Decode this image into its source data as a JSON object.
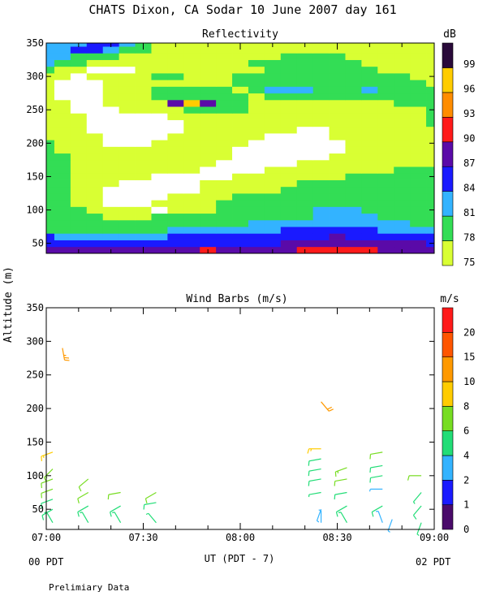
{
  "figure": {
    "title": "CHATS Dixon, CA  Sodar  10 June 2007  day 161",
    "y_axis_label": "Altitude (m)",
    "x_axis_label": "UT  (PDT - 7)",
    "left_local_time": "00 PDT",
    "right_local_time": "02 PDT",
    "footer_note": "Prelimiary Data"
  },
  "chart_data": [
    {
      "type": "heatmap",
      "title": "Reflectivity",
      "colorbar_unit": "dB",
      "colorbar_levels": [
        75,
        78,
        81,
        84,
        87,
        90,
        93,
        96,
        99
      ],
      "colorbar_colors": [
        "#d9ff33",
        "#33dd55",
        "#33b3ff",
        "#1a1aff",
        "#5a0aa8",
        "#ff1a1a",
        "#ff8c00",
        "#ffcc00",
        "#2a0a3a"
      ],
      "x_ticks": [
        "07:00",
        "07:30",
        "08:00",
        "08:30",
        "09:00"
      ],
      "xlim": [
        "07:00",
        "09:00"
      ],
      "y_ticks": [
        50,
        100,
        150,
        200,
        250,
        300,
        350
      ],
      "ylim": [
        35,
        350
      ],
      "x_times": [
        "07:00",
        "07:05",
        "07:10",
        "07:15",
        "07:20",
        "07:25",
        "07:30",
        "07:35",
        "07:40",
        "07:45",
        "07:50",
        "07:55",
        "08:00",
        "08:05",
        "08:10",
        "08:15",
        "08:20",
        "08:25",
        "08:30",
        "08:35",
        "08:40",
        "08:45",
        "08:50",
        "08:55",
        "09:00"
      ],
      "y_heights": [
        40,
        50,
        60,
        70,
        80,
        90,
        100,
        110,
        120,
        130,
        140,
        150,
        160,
        170,
        180,
        190,
        200,
        210,
        220,
        230,
        240,
        250,
        260,
        270,
        280,
        290,
        300,
        310,
        320,
        330,
        340,
        350
      ],
      "z_dB": [
        [
          87,
          88,
          88,
          88,
          88,
          87,
          87,
          88,
          88,
          89,
          90,
          89,
          88,
          88,
          89,
          89,
          90,
          91,
          91,
          90,
          90,
          89,
          88,
          88,
          87
        ],
        [
          86,
          86,
          86,
          85,
          85,
          85,
          86,
          86,
          86,
          86,
          86,
          86,
          86,
          86,
          86,
          87,
          87,
          88,
          88,
          88,
          88,
          88,
          87,
          87,
          86
        ],
        [
          84,
          83,
          83,
          83,
          83,
          83,
          83,
          83,
          84,
          84,
          84,
          84,
          85,
          85,
          85,
          86,
          86,
          86,
          87,
          86,
          86,
          85,
          85,
          84,
          84
        ],
        [
          80,
          80,
          80,
          80,
          80,
          80,
          80,
          80,
          81,
          81,
          81,
          82,
          82,
          83,
          83,
          84,
          84,
          84,
          85,
          84,
          84,
          83,
          82,
          82,
          81
        ],
        [
          79,
          79,
          79,
          78,
          78,
          78,
          78,
          79,
          79,
          79,
          79,
          80,
          80,
          81,
          81,
          82,
          82,
          82,
          83,
          82,
          82,
          81,
          81,
          80,
          80
        ],
        [
          79,
          79,
          78,
          78,
          77,
          77,
          77,
          78,
          78,
          78,
          78,
          78,
          78,
          79,
          79,
          80,
          80,
          81,
          82,
          81,
          81,
          80,
          80,
          80,
          79
        ],
        [
          79,
          78,
          78,
          77,
          76,
          75,
          75,
          74,
          75,
          75,
          77,
          78,
          78,
          79,
          80,
          80,
          80,
          81,
          81,
          81,
          80,
          80,
          79,
          79,
          79
        ],
        [
          78,
          78,
          77,
          75,
          74,
          73,
          74,
          75,
          75,
          76,
          77,
          78,
          78,
          78,
          79,
          79,
          79,
          80,
          80,
          80,
          80,
          79,
          79,
          79,
          79
        ],
        [
          79,
          78,
          77,
          75,
          74,
          74,
          74,
          74,
          75,
          75,
          76,
          77,
          78,
          78,
          78,
          78,
          79,
          79,
          80,
          80,
          79,
          79,
          79,
          79,
          79
        ],
        [
          78,
          78,
          77,
          76,
          74,
          73,
          73,
          73,
          74,
          74,
          75,
          76,
          77,
          77,
          77,
          78,
          78,
          78,
          79,
          79,
          79,
          79,
          79,
          78,
          78
        ],
        [
          79,
          78,
          77,
          76,
          75,
          74,
          74,
          74,
          74,
          74,
          75,
          75,
          76,
          76,
          77,
          77,
          78,
          78,
          78,
          78,
          78,
          78,
          78,
          78,
          78
        ],
        [
          78,
          78,
          77,
          76,
          75,
          75,
          75,
          74,
          74,
          74,
          74,
          74,
          75,
          75,
          76,
          76,
          77,
          77,
          77,
          78,
          78,
          78,
          78,
          78,
          78
        ],
        [
          79,
          78,
          77,
          76,
          75,
          75,
          75,
          75,
          75,
          75,
          74,
          74,
          74,
          74,
          75,
          75,
          76,
          76,
          76,
          77,
          77,
          77,
          78,
          78,
          78
        ],
        [
          78,
          78,
          77,
          76,
          75,
          75,
          76,
          76,
          76,
          75,
          75,
          74,
          74,
          74,
          74,
          74,
          75,
          75,
          75,
          76,
          76,
          77,
          77,
          77,
          77
        ],
        [
          79,
          78,
          77,
          75,
          75,
          76,
          76,
          76,
          76,
          75,
          75,
          75,
          74,
          74,
          74,
          74,
          74,
          74,
          75,
          75,
          76,
          76,
          77,
          77,
          77
        ],
        [
          78,
          77,
          77,
          75,
          75,
          75,
          76,
          76,
          76,
          75,
          75,
          75,
          74,
          74,
          74,
          74,
          74,
          74,
          74,
          75,
          75,
          76,
          77,
          77,
          77
        ],
        [
          78,
          77,
          76,
          75,
          74,
          74,
          74,
          75,
          75,
          76,
          75,
          75,
          75,
          74,
          74,
          74,
          74,
          74,
          74,
          75,
          75,
          76,
          76,
          77,
          77
        ],
        [
          77,
          77,
          76,
          75,
          74,
          74,
          74,
          74,
          75,
          75,
          75,
          75,
          75,
          75,
          74,
          74,
          74,
          74,
          75,
          75,
          75,
          76,
          77,
          77,
          77
        ],
        [
          77,
          76,
          75,
          74,
          74,
          74,
          74,
          74,
          74,
          75,
          75,
          75,
          75,
          75,
          75,
          75,
          74,
          74,
          75,
          75,
          76,
          76,
          76,
          77,
          77
        ],
        [
          77,
          76,
          75,
          74,
          73,
          73,
          74,
          74,
          74,
          75,
          75,
          76,
          76,
          76,
          76,
          75,
          75,
          75,
          75,
          75,
          76,
          76,
          76,
          77,
          78
        ],
        [
          76,
          76,
          75,
          74,
          73,
          74,
          74,
          74,
          75,
          76,
          76,
          77,
          77,
          77,
          76,
          76,
          75,
          75,
          75,
          76,
          76,
          76,
          77,
          77,
          78
        ],
        [
          76,
          75,
          74,
          73,
          74,
          75,
          76,
          76,
          77,
          79,
          78,
          78,
          78,
          77,
          77,
          77,
          76,
          76,
          76,
          76,
          77,
          77,
          77,
          77,
          78
        ],
        [
          76,
          75,
          74,
          74,
          75,
          76,
          77,
          77,
          88,
          97,
          88,
          79,
          78,
          77,
          77,
          77,
          76,
          76,
          77,
          77,
          77,
          77,
          78,
          78,
          78
        ],
        [
          75,
          74,
          74,
          74,
          75,
          76,
          77,
          78,
          79,
          80,
          79,
          78,
          78,
          77,
          78,
          79,
          79,
          79,
          78,
          79,
          80,
          79,
          78,
          78,
          78
        ],
        [
          75,
          74,
          74,
          74,
          75,
          76,
          77,
          78,
          78,
          78,
          78,
          78,
          77,
          79,
          81,
          83,
          82,
          80,
          79,
          80,
          82,
          80,
          79,
          78,
          78
        ],
        [
          75,
          74,
          74,
          74,
          75,
          76,
          77,
          77,
          77,
          77,
          77,
          77,
          78,
          79,
          80,
          80,
          80,
          79,
          78,
          78,
          79,
          79,
          78,
          78,
          77
        ],
        [
          77,
          75,
          74,
          75,
          75,
          76,
          77,
          78,
          78,
          77,
          77,
          77,
          78,
          78,
          78,
          78,
          79,
          79,
          78,
          78,
          78,
          78,
          78,
          77,
          77
        ],
        [
          80,
          77,
          75,
          74,
          74,
          74,
          75,
          76,
          77,
          77,
          77,
          77,
          77,
          77,
          78,
          78,
          78,
          79,
          79,
          78,
          78,
          77,
          77,
          77,
          77
        ],
        [
          83,
          80,
          78,
          76,
          75,
          75,
          76,
          76,
          77,
          77,
          77,
          77,
          77,
          78,
          78,
          78,
          79,
          79,
          79,
          78,
          77,
          77,
          77,
          77,
          77
        ],
        [
          82,
          81,
          80,
          79,
          78,
          77,
          77,
          77,
          77,
          77,
          77,
          77,
          77,
          77,
          77,
          78,
          78,
          78,
          78,
          77,
          77,
          77,
          77,
          77,
          77
        ],
        [
          82,
          82,
          84,
          85,
          83,
          80,
          78,
          77,
          77,
          77,
          77,
          77,
          77,
          77,
          77,
          77,
          77,
          77,
          77,
          77,
          77,
          77,
          77,
          77,
          77
        ],
        [
          82,
          82,
          83,
          85,
          84,
          81,
          78,
          77,
          77,
          77,
          77,
          77,
          77,
          77,
          77,
          77,
          77,
          77,
          77,
          77,
          77,
          77,
          77,
          77,
          77
        ]
      ]
    },
    {
      "type": "scatter",
      "title": "Wind Barbs (m/s)",
      "colorbar_unit": "m/s",
      "colorbar_labels": [
        0,
        1,
        2,
        4,
        6,
        8,
        10,
        15,
        20
      ],
      "colorbar_colors": [
        "#4a0a6a",
        "#1a1aff",
        "#33b3ff",
        "#22dd77",
        "#77dd22",
        "#ffcc00",
        "#ff9900",
        "#ff5500",
        "#ff1a1a"
      ],
      "x_ticks": [
        "07:00",
        "07:30",
        "08:00",
        "08:30",
        "09:00"
      ],
      "xlim": [
        "07:00",
        "09:00"
      ],
      "y_ticks": [
        50,
        100,
        150,
        200,
        250,
        300,
        350
      ],
      "ylim": [
        20,
        350
      ],
      "barbs": [
        {
          "t": "07:02",
          "h": 30,
          "speed": 4,
          "dir": 330
        },
        {
          "t": "07:02",
          "h": 50,
          "speed": 5,
          "dir": 240
        },
        {
          "t": "07:02",
          "h": 65,
          "speed": 5,
          "dir": 250
        },
        {
          "t": "07:02",
          "h": 80,
          "speed": 6,
          "dir": 250
        },
        {
          "t": "07:02",
          "h": 95,
          "speed": 6,
          "dir": 250
        },
        {
          "t": "07:02",
          "h": 110,
          "speed": 7,
          "dir": 225
        },
        {
          "t": "07:02",
          "h": 135,
          "speed": 8,
          "dir": 250
        },
        {
          "t": "07:05",
          "h": 290,
          "speed": 14,
          "dir": 170
        },
        {
          "t": "07:13",
          "h": 30,
          "speed": 4,
          "dir": 330
        },
        {
          "t": "07:13",
          "h": 55,
          "speed": 5,
          "dir": 240
        },
        {
          "t": "07:13",
          "h": 75,
          "speed": 6,
          "dir": 240
        },
        {
          "t": "07:13",
          "h": 95,
          "speed": 6,
          "dir": 230
        },
        {
          "t": "07:23",
          "h": 30,
          "speed": 4,
          "dir": 330
        },
        {
          "t": "07:23",
          "h": 55,
          "speed": 5,
          "dir": 240
        },
        {
          "t": "07:23",
          "h": 75,
          "speed": 6,
          "dir": 260
        },
        {
          "t": "07:34",
          "h": 30,
          "speed": 4,
          "dir": 320
        },
        {
          "t": "07:34",
          "h": 60,
          "speed": 5,
          "dir": 260
        },
        {
          "t": "07:34",
          "h": 75,
          "speed": 6,
          "dir": 240
        },
        {
          "t": "08:25",
          "h": 30,
          "speed": 3,
          "dir": 0
        },
        {
          "t": "08:25",
          "h": 50,
          "speed": 2,
          "dir": 200
        },
        {
          "t": "08:25",
          "h": 75,
          "speed": 4,
          "dir": 260
        },
        {
          "t": "08:25",
          "h": 95,
          "speed": 5,
          "dir": 260
        },
        {
          "t": "08:25",
          "h": 110,
          "speed": 5,
          "dir": 260
        },
        {
          "t": "08:25",
          "h": 125,
          "speed": 5,
          "dir": 260
        },
        {
          "t": "08:25",
          "h": 140,
          "speed": 8,
          "dir": 270
        },
        {
          "t": "08:25",
          "h": 210,
          "speed": 10,
          "dir": 140
        },
        {
          "t": "08:33",
          "h": 30,
          "speed": 4,
          "dir": 330
        },
        {
          "t": "08:33",
          "h": 55,
          "speed": 5,
          "dir": 240
        },
        {
          "t": "08:33",
          "h": 75,
          "speed": 5,
          "dir": 260
        },
        {
          "t": "08:33",
          "h": 95,
          "speed": 6,
          "dir": 260
        },
        {
          "t": "08:33",
          "h": 112,
          "speed": 7,
          "dir": 250
        },
        {
          "t": "08:44",
          "h": 30,
          "speed": 3,
          "dir": 340
        },
        {
          "t": "08:44",
          "h": 55,
          "speed": 5,
          "dir": 240
        },
        {
          "t": "08:44",
          "h": 80,
          "speed": 2,
          "dir": 270
        },
        {
          "t": "08:44",
          "h": 100,
          "speed": 5,
          "dir": 260
        },
        {
          "t": "08:44",
          "h": 115,
          "speed": 5,
          "dir": 260
        },
        {
          "t": "08:44",
          "h": 135,
          "speed": 6,
          "dir": 260
        },
        {
          "t": "08:47",
          "h": 35,
          "speed": 2,
          "dir": 200
        },
        {
          "t": "08:56",
          "h": 30,
          "speed": 4,
          "dir": 200
        },
        {
          "t": "08:56",
          "h": 55,
          "speed": 5,
          "dir": 220
        },
        {
          "t": "08:56",
          "h": 75,
          "speed": 4,
          "dir": 220
        },
        {
          "t": "08:56",
          "h": 100,
          "speed": 6,
          "dir": 270
        }
      ]
    }
  ]
}
